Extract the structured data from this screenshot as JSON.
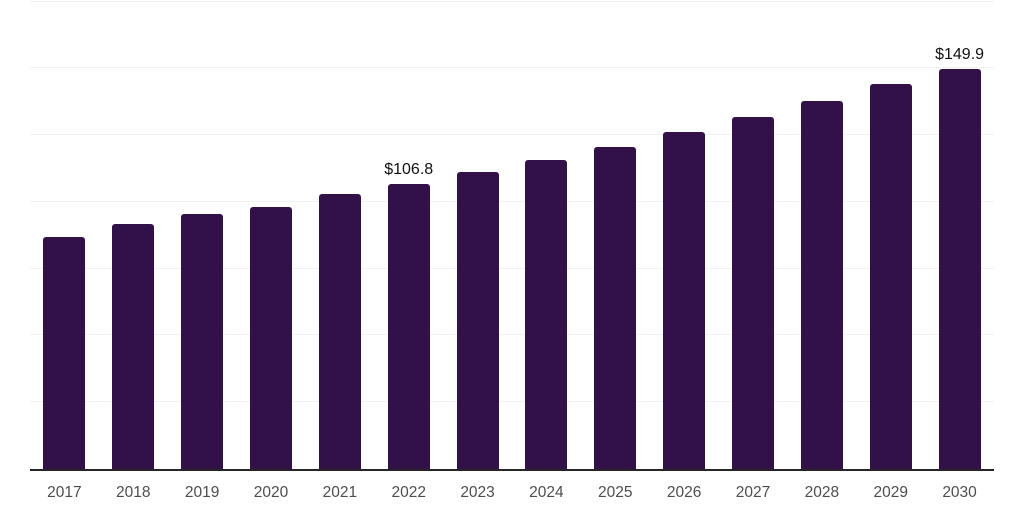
{
  "chart_data": {
    "type": "bar",
    "title": "",
    "xlabel": "",
    "ylabel": "",
    "categories": [
      "2017",
      "2018",
      "2019",
      "2020",
      "2021",
      "2022",
      "2023",
      "2024",
      "2025",
      "2026",
      "2027",
      "2028",
      "2029",
      "2030"
    ],
    "values": [
      87.0,
      91.9,
      95.4,
      98.1,
      102.9,
      106.8,
      111.1,
      115.7,
      120.6,
      126.2,
      131.7,
      137.8,
      144.1,
      149.9
    ],
    "labeled_points": [
      {
        "category": "2022",
        "label": "$106.8"
      },
      {
        "category": "2030",
        "label": "$149.9"
      }
    ],
    "ylim": [
      0,
      175
    ],
    "grid_interval": 25,
    "grid": true,
    "legend": false,
    "colors": {
      "bar": "#321149",
      "axis_line": "#262626",
      "gridline": "#f2f2f2",
      "tick_label": "#4d4d4d",
      "value_label": "#111111",
      "background": "#ffffff"
    }
  }
}
